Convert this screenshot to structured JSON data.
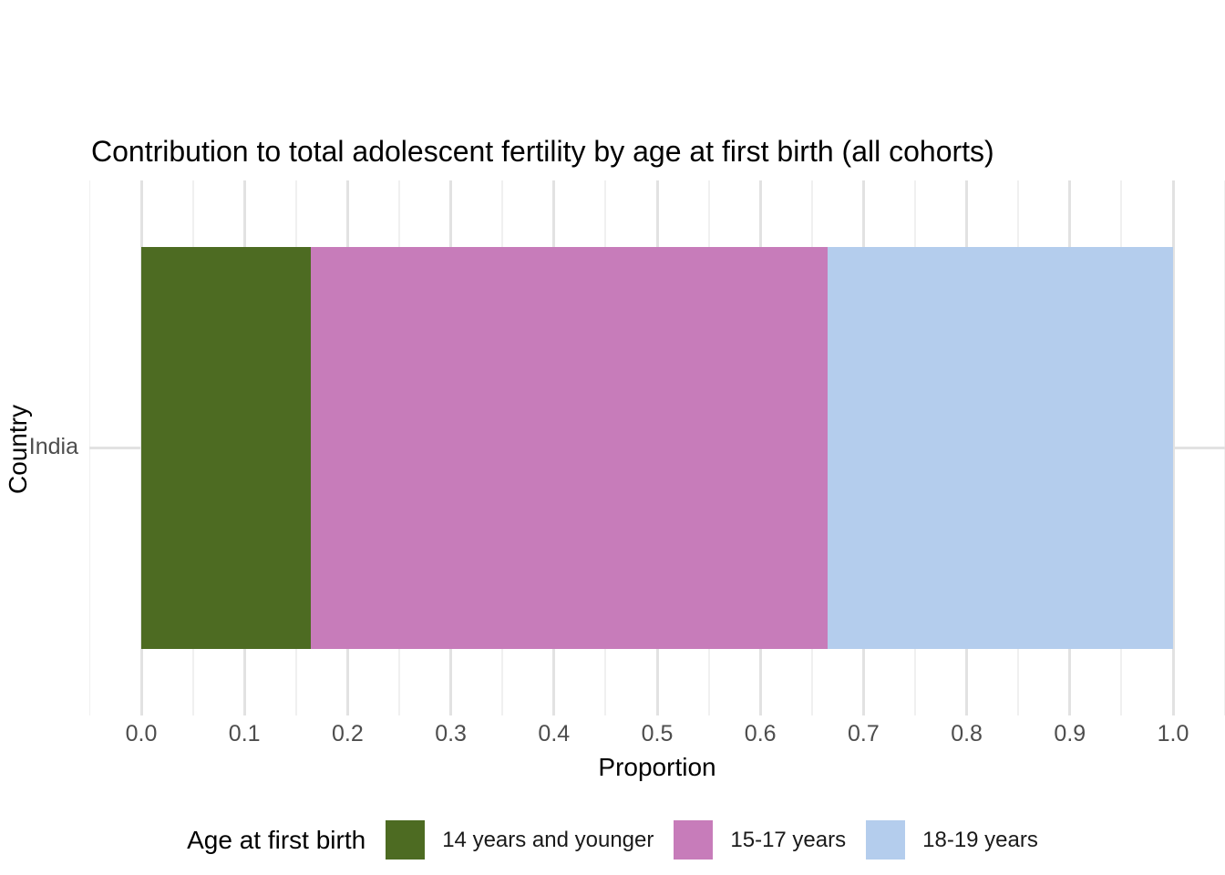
{
  "figure": {
    "title": "Contribution to total adolescent fertility by age at first birth (all cohorts)",
    "background_color": "#FFFFFF"
  },
  "axes": {
    "x": {
      "label": "Proportion",
      "range": [
        0.0,
        1.0
      ],
      "ticks": [
        {
          "value": 0.0,
          "label": "0.0"
        },
        {
          "value": 0.1,
          "label": "0.1"
        },
        {
          "value": 0.2,
          "label": "0.2"
        },
        {
          "value": 0.3,
          "label": "0.3"
        },
        {
          "value": 0.4,
          "label": "0.4"
        },
        {
          "value": 0.5,
          "label": "0.5"
        },
        {
          "value": 0.6,
          "label": "0.6"
        },
        {
          "value": 0.7,
          "label": "0.7"
        },
        {
          "value": 0.8,
          "label": "0.8"
        },
        {
          "value": 0.9,
          "label": "0.9"
        },
        {
          "value": 1.0,
          "label": "1.0"
        }
      ]
    },
    "y": {
      "label": "Country",
      "categories": [
        "India"
      ]
    }
  },
  "legend": {
    "title": "Age at first birth",
    "position": "bottom",
    "items": [
      {
        "label": "14 years and younger",
        "color": "#4D6B22"
      },
      {
        "label": "15-17 years",
        "color": "#C77CBA"
      },
      {
        "label": "18-19 years",
        "color": "#B4CDED"
      }
    ]
  },
  "style_colors": {
    "grid_major": "#E2E2E2",
    "grid_minor": "#F0F0F0",
    "tick_text": "#4D4D4D",
    "title_text": "#000000"
  },
  "chart_data": {
    "type": "bar",
    "orientation": "horizontal",
    "stacked": true,
    "title": "Contribution to total adolescent fertility by age at first birth (all cohorts)",
    "xlabel": "Proportion",
    "ylabel": "Country",
    "xlim": [
      0.0,
      1.0
    ],
    "grid": true,
    "legend_title": "Age at first birth",
    "legend_position": "bottom",
    "categories": [
      "India"
    ],
    "series": [
      {
        "name": "14 years and younger",
        "color": "#4D6B22",
        "values": [
          0.164
        ]
      },
      {
        "name": "15-17 years",
        "color": "#C77CBA",
        "values": [
          0.501
        ]
      },
      {
        "name": "18-19 years",
        "color": "#B4CDED",
        "values": [
          0.335
        ]
      }
    ]
  }
}
